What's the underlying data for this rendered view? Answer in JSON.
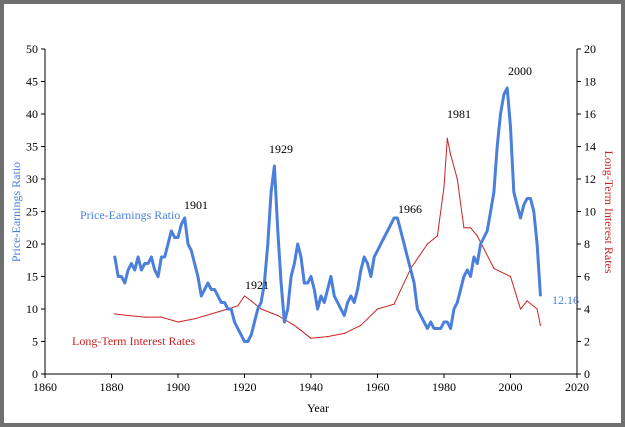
{
  "chart_data": {
    "type": "line",
    "xlabel": "Year",
    "ylabel": "Price-Earnings Ratio",
    "y2label": "Long-Term Interest Rates",
    "xlim": [
      1860,
      2020
    ],
    "ylim": [
      0,
      50
    ],
    "y2lim": [
      0,
      20
    ],
    "xticks": [
      "1860",
      "1880",
      "1900",
      "1920",
      "1940",
      "1960",
      "1980",
      "2000",
      "2020"
    ],
    "yticks": [
      "0",
      "5",
      "10",
      "15",
      "20",
      "25",
      "30",
      "35",
      "40",
      "45",
      "50"
    ],
    "y2ticks": [
      "0",
      "2",
      "4",
      "6",
      "8",
      "10",
      "12",
      "14",
      "16",
      "18",
      "20"
    ],
    "grid": false,
    "legend": "inline labels",
    "series": [
      {
        "name": "Price-Earnings Ratio",
        "axis": "left",
        "color": "#4a7fdc",
        "x": [
          1881,
          1882,
          1883,
          1884,
          1885,
          1886,
          1887,
          1888,
          1889,
          1890,
          1891,
          1892,
          1893,
          1894,
          1895,
          1896,
          1897,
          1898,
          1899,
          1900,
          1901,
          1902,
          1903,
          1904,
          1905,
          1906,
          1907,
          1908,
          1909,
          1910,
          1911,
          1912,
          1913,
          1914,
          1915,
          1916,
          1917,
          1918,
          1919,
          1920,
          1921,
          1922,
          1923,
          1924,
          1925,
          1926,
          1927,
          1928,
          1929,
          1930,
          1931,
          1932,
          1933,
          1934,
          1935,
          1936,
          1937,
          1938,
          1939,
          1940,
          1941,
          1942,
          1943,
          1944,
          1945,
          1946,
          1947,
          1948,
          1949,
          1950,
          1951,
          1952,
          1953,
          1954,
          1955,
          1956,
          1957,
          1958,
          1959,
          1960,
          1961,
          1962,
          1963,
          1964,
          1965,
          1966,
          1967,
          1968,
          1969,
          1970,
          1971,
          1972,
          1973,
          1974,
          1975,
          1976,
          1977,
          1978,
          1979,
          1980,
          1981,
          1982,
          1983,
          1984,
          1985,
          1986,
          1987,
          1988,
          1989,
          1990,
          1991,
          1992,
          1993,
          1994,
          1995,
          1996,
          1997,
          1998,
          1999,
          2000,
          2001,
          2002,
          2003,
          2004,
          2005,
          2006,
          2007,
          2008,
          2009
        ],
        "values": [
          18,
          15,
          15,
          14,
          16,
          17,
          16,
          18,
          16,
          17,
          17,
          18,
          16,
          15,
          18,
          18,
          20,
          22,
          21,
          21,
          23,
          24,
          20,
          19,
          17,
          15,
          12,
          13,
          14,
          13,
          13,
          12,
          11,
          11,
          10,
          10,
          8,
          7,
          6,
          5,
          5,
          6,
          8,
          10,
          11,
          14,
          20,
          28,
          32,
          22,
          14,
          8,
          10,
          15,
          17,
          20,
          18,
          14,
          14,
          15,
          13,
          10,
          12,
          11,
          13,
          15,
          12,
          11,
          10,
          9,
          11,
          12,
          11,
          13,
          16,
          18,
          17,
          15,
          18,
          19,
          20,
          21,
          22,
          23,
          24,
          24,
          22,
          20,
          18,
          16,
          14,
          10,
          9,
          8,
          7,
          8,
          7,
          7,
          7,
          8,
          8,
          7,
          10,
          11,
          13,
          15,
          16,
          15,
          18,
          17,
          20,
          21,
          22,
          25,
          28,
          35,
          40,
          43,
          44,
          38,
          28,
          26,
          24,
          26,
          27,
          27,
          25,
          20,
          12.16
        ],
        "label": "Price-Earnings Ratio",
        "end_label": "12.16"
      },
      {
        "name": "Long-Term Interest Rates",
        "axis": "right",
        "color": "#cc2222",
        "x": [
          1881,
          1885,
          1890,
          1895,
          1900,
          1905,
          1910,
          1915,
          1918,
          1920,
          1922,
          1925,
          1930,
          1935,
          1940,
          1945,
          1950,
          1955,
          1960,
          1965,
          1970,
          1975,
          1978,
          1980,
          1981,
          1982,
          1984,
          1986,
          1988,
          1990,
          1995,
          2000,
          2003,
          2005,
          2008,
          2009
        ],
        "values": [
          3.7,
          3.6,
          3.5,
          3.5,
          3.2,
          3.4,
          3.7,
          4.0,
          4.2,
          4.8,
          4.5,
          4.0,
          3.6,
          3.0,
          2.2,
          2.3,
          2.5,
          3.0,
          4.0,
          4.3,
          6.5,
          8.0,
          8.5,
          11.5,
          14.5,
          13.5,
          12.0,
          9.0,
          9.0,
          8.5,
          6.5,
          6.0,
          4.0,
          4.5,
          4.0,
          3.0
        ],
        "label": "Long-Term Interest Rates"
      }
    ],
    "annotations": [
      "1901",
      "1921",
      "1929",
      "1966",
      "1981",
      "2000"
    ]
  }
}
